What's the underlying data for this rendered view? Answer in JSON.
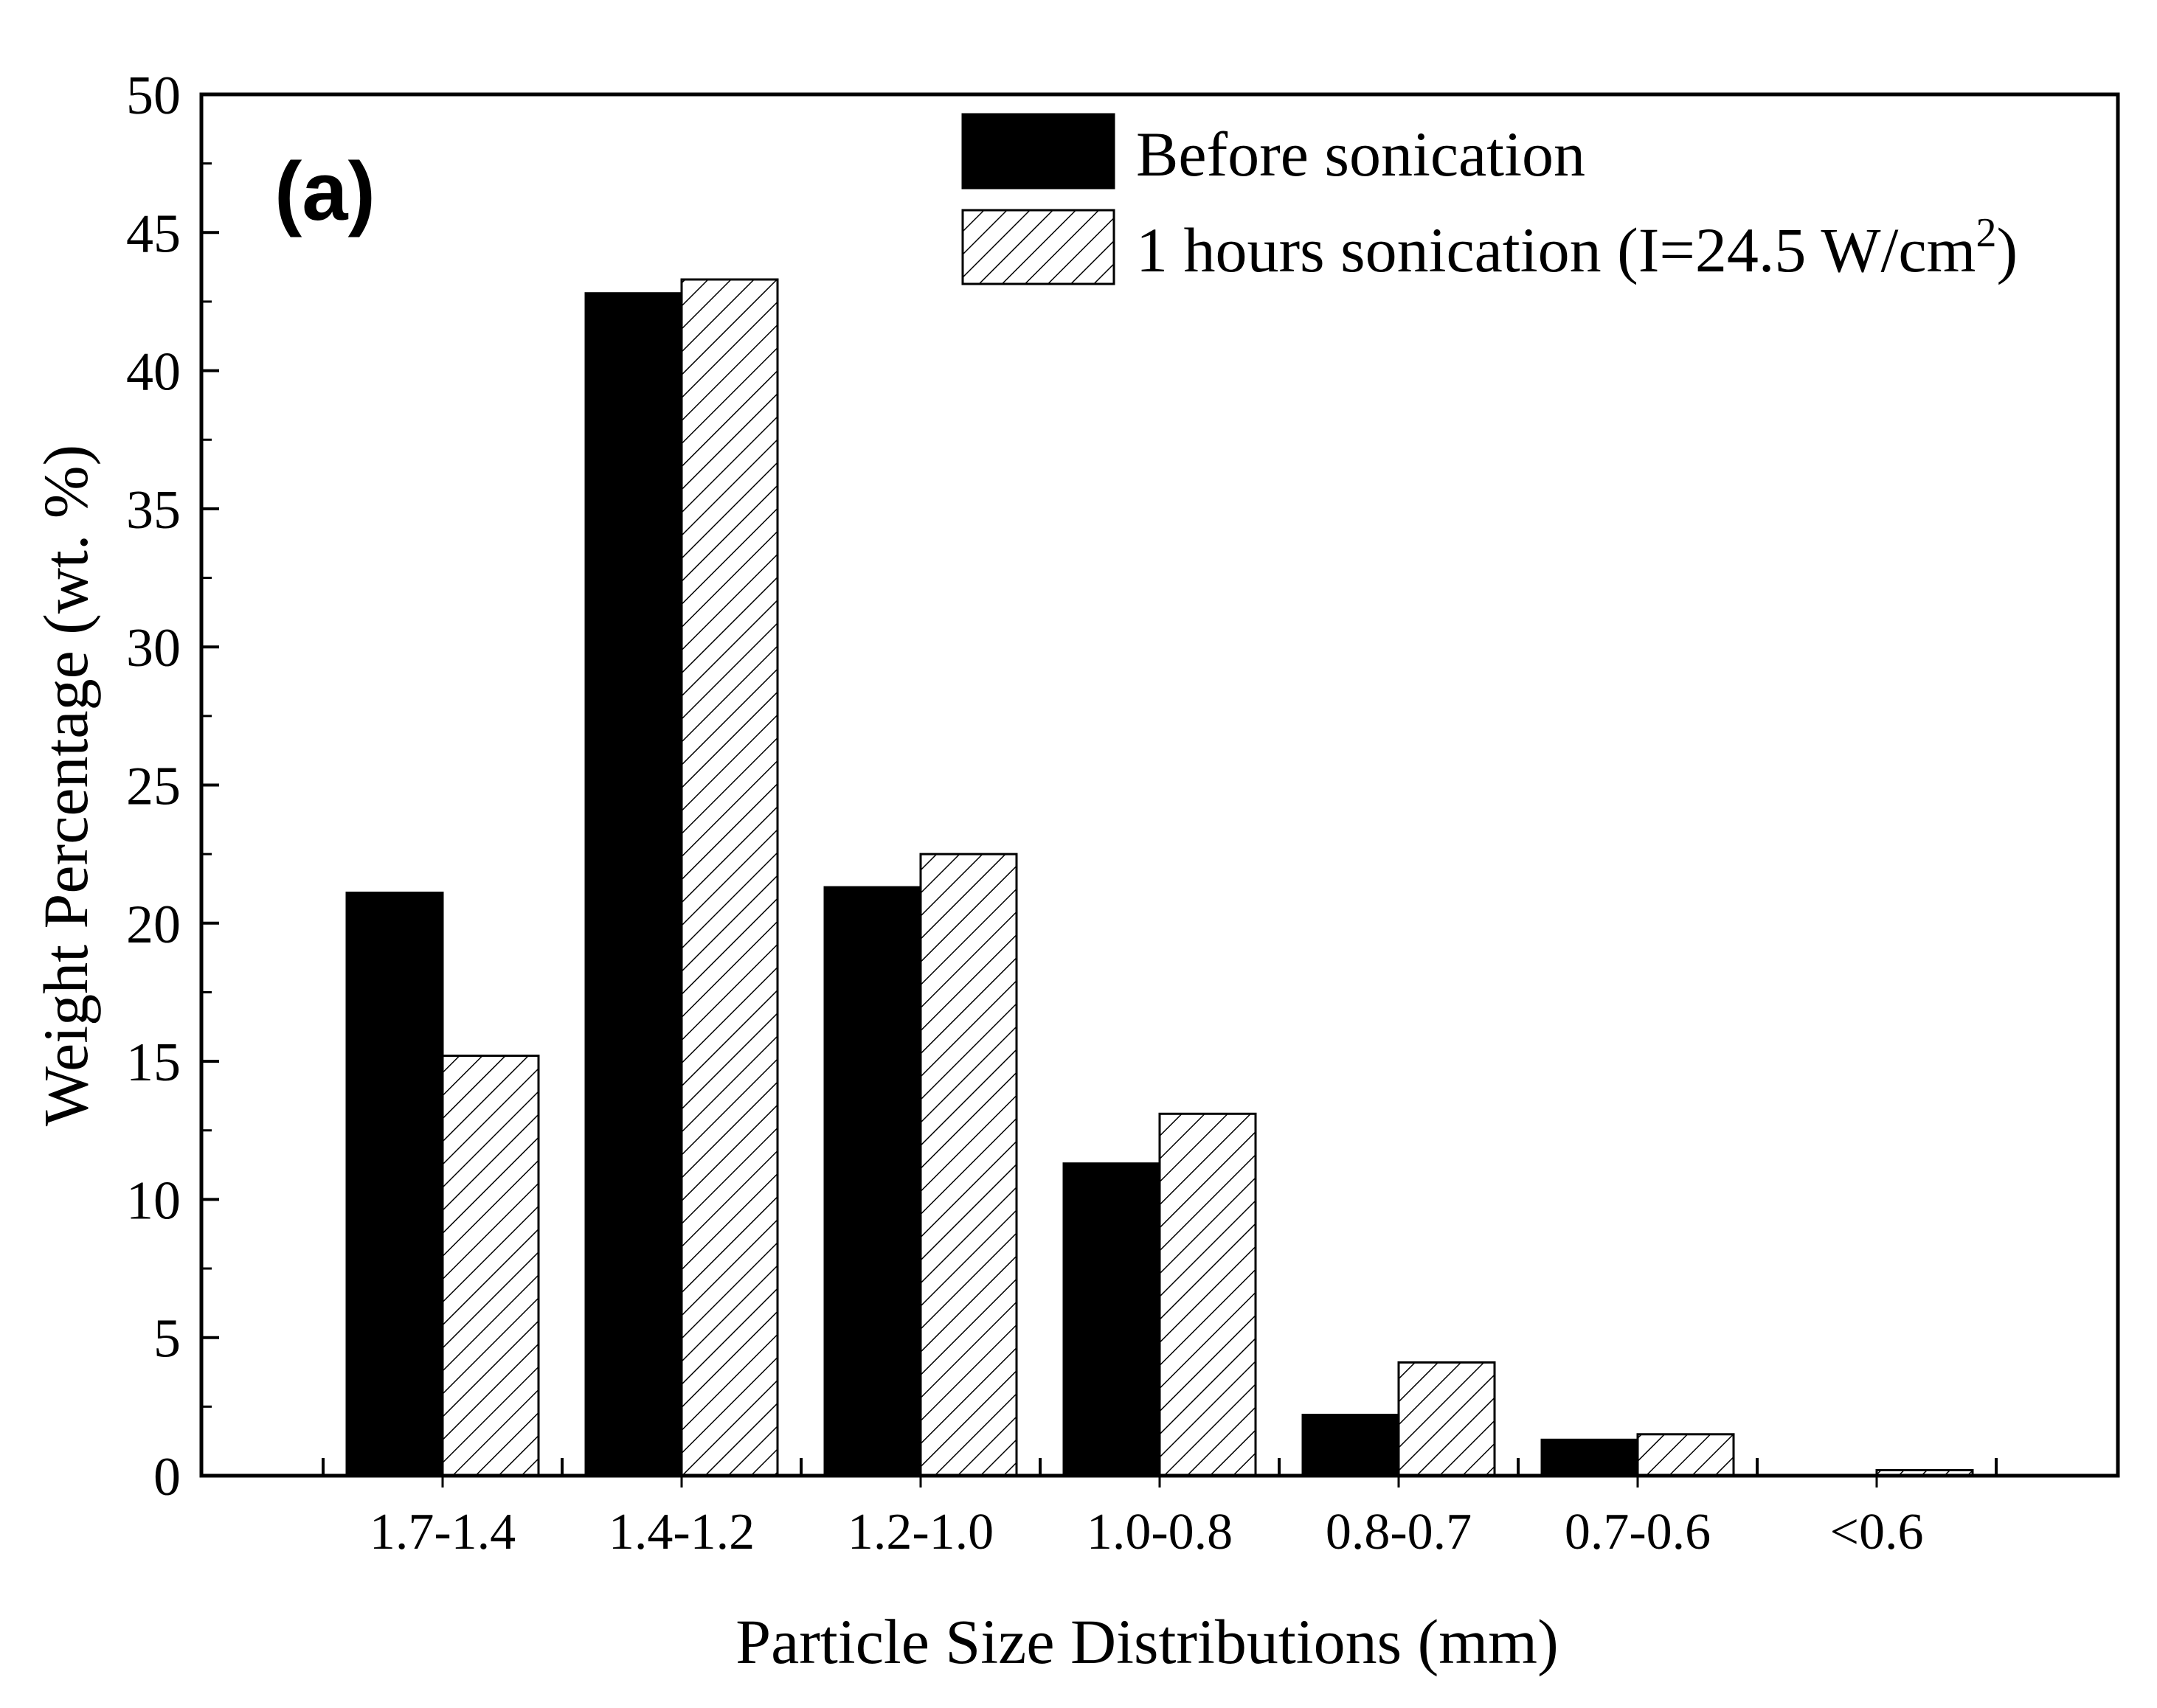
{
  "chart_data": {
    "type": "bar",
    "panel_label": "(a)",
    "xlabel": "Particle Size Distributions (mm)",
    "ylabel": "Weight Percentage (wt. %)",
    "ylim": [
      0,
      50
    ],
    "yticks": [
      0,
      5,
      10,
      15,
      20,
      25,
      30,
      35,
      40,
      45,
      50
    ],
    "ytick_labels": [
      "0",
      "5",
      "10",
      "15",
      "20",
      "25",
      "30",
      "35",
      "40",
      "45",
      "50"
    ],
    "categories": [
      "1.7-1.4",
      "1.4-1.2",
      "1.2-1.0",
      "1.0-0.8",
      "0.8-0.7",
      "0.7-0.6",
      "<0.6"
    ],
    "series": [
      {
        "name": "Before sonication",
        "fill": "solid",
        "color": "#000000",
        "values": [
          21.1,
          42.8,
          21.3,
          11.3,
          2.2,
          1.3,
          0
        ]
      },
      {
        "name": "1 hours sonication (I=24.5 W/cm",
        "superscript": "2",
        "name_suffix": ")",
        "fill": "hatch",
        "color": "#ffffff",
        "values": [
          15.2,
          43.3,
          22.5,
          13.1,
          4.1,
          1.5,
          0.2
        ]
      }
    ],
    "legend_position": "top-right",
    "grid": false
  }
}
